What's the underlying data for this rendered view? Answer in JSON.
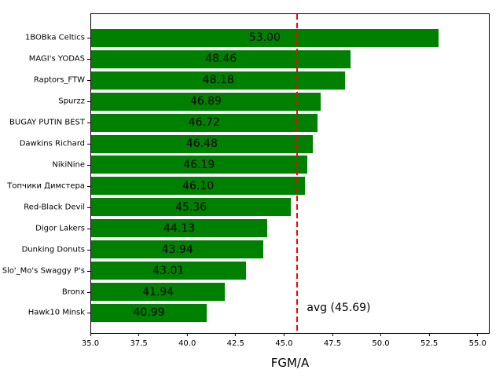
{
  "chart_data": {
    "type": "bar",
    "orientation": "horizontal",
    "title": "",
    "xlabel": "FGM/A",
    "ylabel": "",
    "grid": false,
    "legend": false,
    "xlim": [
      35.0,
      55.62
    ],
    "bar_color": "#008000",
    "value_label_color": "#000000",
    "categories": [
      "1BOBka Celtics",
      "MAGI's YODAS",
      "Raptors_FTW",
      "Spurzz",
      "BUGAY PUTIN BEST",
      "Dawkins Richard",
      "NikiNine",
      "Топчики Димстера",
      "Red-Black Devil",
      "Digor Lakers",
      "Dunking Donuts",
      "Slo'_Mo's Swaggy P's",
      "Bronx",
      "Hawk10 Minsk"
    ],
    "values": [
      53.0,
      48.46,
      48.18,
      46.89,
      46.72,
      46.48,
      46.19,
      46.1,
      45.36,
      44.13,
      43.94,
      43.01,
      41.94,
      40.99
    ],
    "value_labels": [
      "53.00",
      "48.46",
      "48.18",
      "46.89",
      "46.72",
      "46.48",
      "46.19",
      "46.10",
      "45.36",
      "44.13",
      "43.94",
      "43.01",
      "41.94",
      "40.99"
    ],
    "x_tick_values": [
      35.0,
      37.5,
      40.0,
      42.5,
      45.0,
      47.5,
      50.0,
      52.5,
      55.0
    ],
    "x_tick_labels": [
      "35.0",
      "37.5",
      "40.0",
      "42.5",
      "45.0",
      "47.5",
      "50.0",
      "52.5",
      "55.0"
    ],
    "avg_line": {
      "value": 45.69,
      "label": "avg (45.69)",
      "color": "#ff0000",
      "style": "dashed"
    }
  }
}
